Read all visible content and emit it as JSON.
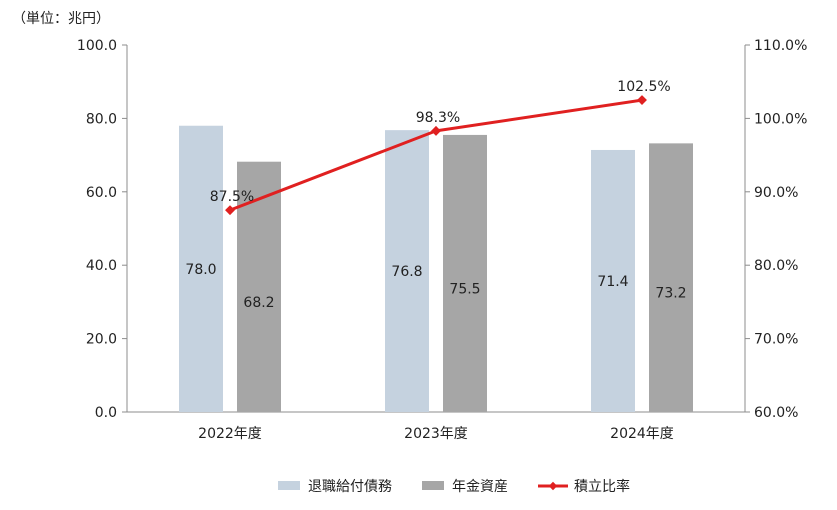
{
  "chart_data": {
    "type": "bar",
    "unit_label": "（単位：兆円）",
    "categories": [
      "2022年度",
      "2023年度",
      "2024年度"
    ],
    "series": [
      {
        "name": "退職給付債務",
        "type": "bar",
        "axis": "left",
        "color": "#c5d2df",
        "values": [
          78.0,
          76.8,
          71.4
        ]
      },
      {
        "name": "年金資産",
        "type": "bar",
        "axis": "left",
        "color": "#a6a6a6",
        "values": [
          68.2,
          75.5,
          73.2
        ]
      },
      {
        "name": "積立比率",
        "type": "line",
        "axis": "right",
        "color": "#e02020",
        "values": [
          87.5,
          98.3,
          102.5
        ]
      }
    ],
    "bar_labels": [
      [
        "78.0",
        "76.8",
        "71.4"
      ],
      [
        "68.2",
        "75.5",
        "73.2"
      ]
    ],
    "line_labels": [
      "87.5%",
      "98.3%",
      "102.5%"
    ],
    "y_left": {
      "min": 0,
      "max": 100,
      "ticks": [
        "0.0",
        "20.0",
        "40.0",
        "60.0",
        "80.0",
        "100.0"
      ]
    },
    "y_right": {
      "min": 60,
      "max": 110,
      "ticks": [
        "60.0%",
        "70.0%",
        "80.0%",
        "90.0%",
        "100.0%",
        "110.0%"
      ]
    },
    "grid": false,
    "legend_position": "bottom"
  }
}
